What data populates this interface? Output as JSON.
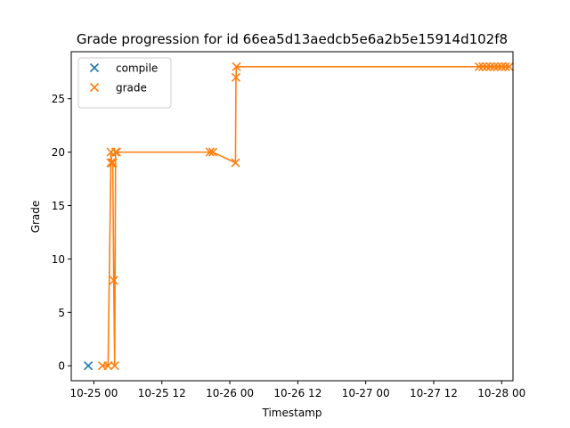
{
  "chart_data": {
    "type": "scatter",
    "title": "Grade progression for id 66ea5d13aedcb5e6a2b5e15914d102f8",
    "xlabel": "Timestamp",
    "ylabel": "Grade",
    "x_axis_type": "datetime",
    "xlim": [
      "2024-10-24T20:00",
      "2024-10-28T02:00"
    ],
    "ylim": [
      -1.4,
      29.4
    ],
    "x_ticks": [
      {
        "value": "2024-10-25T00:00",
        "label": "10-25 00"
      },
      {
        "value": "2024-10-25T12:00",
        "label": "10-25 12"
      },
      {
        "value": "2024-10-26T00:00",
        "label": "10-26 00"
      },
      {
        "value": "2024-10-26T12:00",
        "label": "10-26 12"
      },
      {
        "value": "2024-10-27T00:00",
        "label": "10-27 00"
      },
      {
        "value": "2024-10-27T12:00",
        "label": "10-27 12"
      },
      {
        "value": "2024-10-28T00:00",
        "label": "10-28 00"
      }
    ],
    "y_ticks": [
      {
        "value": 0,
        "label": "0"
      },
      {
        "value": 5,
        "label": "5"
      },
      {
        "value": 10,
        "label": "10"
      },
      {
        "value": 15,
        "label": "15"
      },
      {
        "value": 20,
        "label": "20"
      },
      {
        "value": 25,
        "label": "25"
      }
    ],
    "grid": false,
    "legend_position": "top-left",
    "series": [
      {
        "name": "compile",
        "color": "#1f77b4",
        "marker": "x",
        "line": false,
        "points": [
          {
            "x": "2024-10-24T23:00",
            "y": 0
          }
        ]
      },
      {
        "name": "grade",
        "color": "#ff7f0e",
        "marker": "x",
        "line": true,
        "points": [
          {
            "x": "2024-10-25T01:30",
            "y": 0
          },
          {
            "x": "2024-10-25T02:30",
            "y": 0
          },
          {
            "x": "2024-10-25T03:00",
            "y": 19
          },
          {
            "x": "2024-10-25T03:00",
            "y": 20
          },
          {
            "x": "2024-10-25T03:10",
            "y": 19
          },
          {
            "x": "2024-10-25T03:20",
            "y": 19
          },
          {
            "x": "2024-10-25T03:30",
            "y": 8
          },
          {
            "x": "2024-10-25T03:40",
            "y": 0
          },
          {
            "x": "2024-10-25T03:50",
            "y": 20
          },
          {
            "x": "2024-10-25T04:00",
            "y": 20
          },
          {
            "x": "2024-10-25T20:30",
            "y": 20
          },
          {
            "x": "2024-10-25T21:00",
            "y": 20
          },
          {
            "x": "2024-10-26T01:00",
            "y": 19
          },
          {
            "x": "2024-10-26T01:05",
            "y": 27
          },
          {
            "x": "2024-10-26T01:10",
            "y": 28
          },
          {
            "x": "2024-10-27T20:00",
            "y": 28
          },
          {
            "x": "2024-10-27T20:40",
            "y": 28
          },
          {
            "x": "2024-10-27T21:20",
            "y": 28
          },
          {
            "x": "2024-10-27T22:00",
            "y": 28
          },
          {
            "x": "2024-10-27T22:40",
            "y": 28
          },
          {
            "x": "2024-10-27T23:20",
            "y": 28
          },
          {
            "x": "2024-10-28T00:00",
            "y": 28
          },
          {
            "x": "2024-10-28T00:40",
            "y": 28
          },
          {
            "x": "2024-10-28T01:20",
            "y": 28
          }
        ]
      }
    ]
  }
}
